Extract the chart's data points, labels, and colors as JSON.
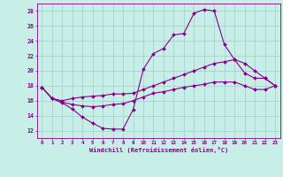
{
  "xlabel": "Windchill (Refroidissement éolien,°C)",
  "background_color": "#c8eee8",
  "grid_color": "#a0cccc",
  "line_color": "#880088",
  "x_ticks": [
    0,
    1,
    2,
    3,
    4,
    5,
    6,
    7,
    8,
    9,
    10,
    11,
    12,
    13,
    14,
    15,
    16,
    17,
    18,
    19,
    20,
    21,
    22,
    23
  ],
  "ylim": [
    11,
    29
  ],
  "xlim": [
    -0.5,
    23.5
  ],
  "y_ticks": [
    12,
    14,
    16,
    18,
    20,
    22,
    24,
    26,
    28
  ],
  "line1": [
    17.8,
    16.3,
    15.7,
    14.9,
    13.8,
    13.0,
    12.3,
    12.2,
    12.2,
    14.8,
    20.2,
    22.3,
    23.0,
    24.8,
    25.0,
    27.7,
    28.2,
    28.0,
    23.5,
    21.5,
    19.7,
    19.0,
    19.0,
    18.0
  ],
  "line2": [
    17.8,
    16.3,
    16.0,
    16.3,
    16.5,
    16.6,
    16.7,
    16.9,
    16.9,
    17.0,
    17.5,
    18.0,
    18.5,
    19.0,
    19.5,
    20.0,
    20.5,
    21.0,
    21.2,
    21.5,
    21.0,
    20.0,
    19.0,
    18.0
  ],
  "line3": [
    17.8,
    16.3,
    15.8,
    15.5,
    15.3,
    15.2,
    15.3,
    15.5,
    15.6,
    16.0,
    16.5,
    17.0,
    17.2,
    17.5,
    17.8,
    18.0,
    18.2,
    18.5,
    18.5,
    18.5,
    18.0,
    17.5,
    17.5,
    18.0
  ]
}
